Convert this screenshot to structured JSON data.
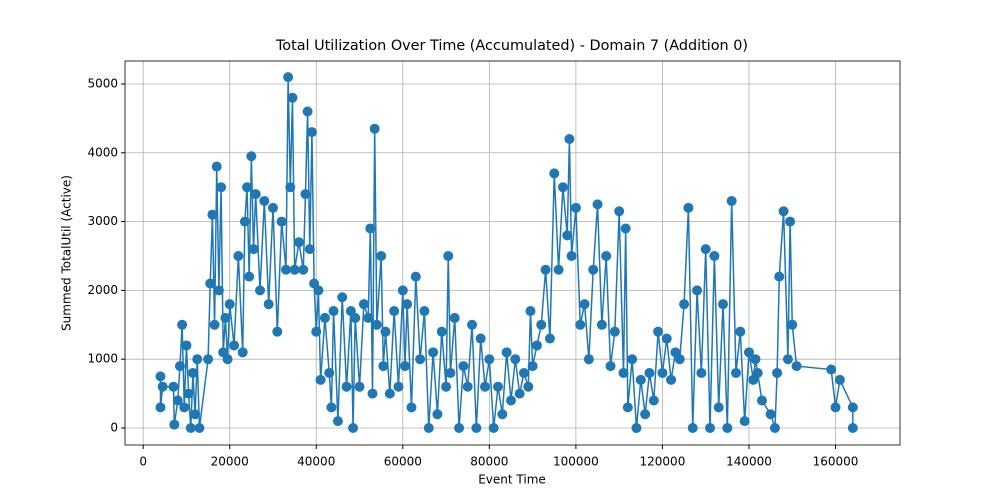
{
  "chart_data": {
    "type": "line",
    "title": "Total Utilization Over Time (Accumulated) - Domain 7 (Addition 0)",
    "x_label": "Event Time",
    "y_label": "Summed TotalUtil (Active)",
    "x": [
      4000,
      4000,
      4500,
      7000,
      7200,
      8000,
      8500,
      9000,
      9500,
      10000,
      10500,
      11000,
      11500,
      12000,
      12500,
      13000,
      15000,
      15500,
      16000,
      16500,
      17000,
      17500,
      18000,
      18500,
      19000,
      19500,
      20000,
      21000,
      22000,
      23000,
      23500,
      24000,
      24500,
      25000,
      25500,
      26000,
      27000,
      28000,
      29000,
      30000,
      31000,
      32000,
      33000,
      33500,
      34000,
      34500,
      35000,
      36000,
      37000,
      37500,
      38000,
      38500,
      39000,
      39500,
      40000,
      40500,
      41000,
      42000,
      43000,
      43500,
      44000,
      45000,
      46000,
      47000,
      48000,
      48500,
      49000,
      50000,
      51000,
      52000,
      52500,
      53000,
      53500,
      54000,
      55000,
      55500,
      56000,
      57000,
      58000,
      59000,
      60000,
      60500,
      61000,
      62000,
      63000,
      64000,
      65000,
      66000,
      67000,
      68000,
      69000,
      70000,
      70500,
      71000,
      72000,
      73000,
      74000,
      75000,
      76000,
      77000,
      78000,
      79000,
      80000,
      81000,
      82000,
      83000,
      84000,
      85000,
      86000,
      87000,
      88000,
      89000,
      89500,
      90000,
      91000,
      92000,
      93000,
      94000,
      95000,
      96000,
      97000,
      98000,
      98500,
      99000,
      100000,
      101000,
      102000,
      103000,
      104000,
      105000,
      106000,
      107000,
      108000,
      109000,
      110000,
      111000,
      111500,
      112000,
      113000,
      114000,
      115000,
      116000,
      117000,
      118000,
      119000,
      120000,
      121000,
      122000,
      123000,
      124000,
      125000,
      126000,
      127000,
      128000,
      129000,
      130000,
      131000,
      132000,
      133000,
      134000,
      135000,
      136000,
      137000,
      138000,
      139000,
      140000,
      141000,
      141500,
      142000,
      143000,
      145000,
      146000,
      146500,
      147000,
      148000,
      149000,
      149500,
      150000,
      151000,
      159000,
      160000,
      161000,
      164000,
      164000
    ],
    "series": [
      {
        "name": "Summed TotalUtil",
        "color": "#1f77b4",
        "values": [
          750,
          300,
          600,
          600,
          50,
          400,
          900,
          1500,
          300,
          1200,
          500,
          0,
          800,
          200,
          1000,
          0,
          1000,
          2100,
          3100,
          1500,
          3800,
          2000,
          3500,
          1100,
          1600,
          1000,
          1800,
          1200,
          2500,
          1100,
          3000,
          3500,
          2200,
          3950,
          2600,
          3400,
          2000,
          3300,
          1800,
          3200,
          1400,
          3000,
          2300,
          5100,
          3500,
          4800,
          2300,
          2700,
          2300,
          3400,
          4600,
          2600,
          4300,
          2100,
          1400,
          2000,
          700,
          1600,
          800,
          300,
          1700,
          100,
          1900,
          600,
          1700,
          0,
          1600,
          600,
          1800,
          1600,
          2900,
          500,
          4350,
          1500,
          2500,
          900,
          1400,
          500,
          1700,
          600,
          2000,
          900,
          1800,
          300,
          2200,
          1000,
          1700,
          0,
          1100,
          200,
          1400,
          600,
          2500,
          800,
          1600,
          0,
          900,
          600,
          1500,
          0,
          1300,
          600,
          1000,
          0,
          600,
          200,
          1100,
          400,
          1000,
          500,
          800,
          600,
          1700,
          900,
          1200,
          1500,
          2300,
          1300,
          3700,
          2300,
          3500,
          2800,
          4200,
          2500,
          3200,
          1500,
          1800,
          1000,
          2300,
          3250,
          1500,
          2500,
          900,
          1400,
          3150,
          800,
          2900,
          300,
          1000,
          0,
          700,
          200,
          800,
          400,
          1400,
          800,
          1300,
          700,
          1100,
          1000,
          1800,
          3200,
          0,
          2000,
          800,
          2600,
          0,
          2500,
          300,
          1800,
          0,
          3300,
          800,
          1400,
          100,
          1100,
          700,
          1000,
          800,
          400,
          200,
          0,
          800,
          2200,
          3150,
          1000,
          3000,
          1500,
          900,
          850,
          300,
          700,
          300,
          0
        ]
      }
    ],
    "xlim": [
      -4200,
      174900
    ],
    "ylim": [
      -247,
      5334
    ],
    "xticks": [
      0,
      20000,
      40000,
      60000,
      80000,
      100000,
      120000,
      140000,
      160000
    ],
    "yticks": [
      0,
      1000,
      2000,
      3000,
      4000,
      5000
    ],
    "grid": true
  }
}
